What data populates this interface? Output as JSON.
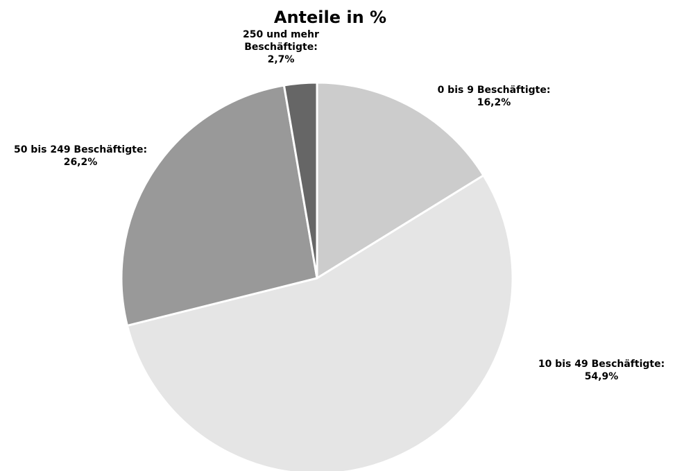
{
  "chart_data": {
    "type": "pie",
    "title": "Anteile in %",
    "series": [
      {
        "slices": [
          {
            "category": "0 bis 9 Beschäftigte",
            "value": 16.2,
            "label": "16,2%",
            "color": "#cccccc"
          },
          {
            "category": "10 bis 49 Beschäftigte",
            "value": 54.9,
            "label": "54,9%",
            "color": "#e5e5e5"
          },
          {
            "category": "50 bis 249 Beschäftigte",
            "value": 26.2,
            "label": "26,2%",
            "color": "#999999"
          },
          {
            "category": "250 und mehr Beschäftigte",
            "value": 2.7,
            "label": "2,7%",
            "color": "#666666"
          }
        ]
      }
    ],
    "labels": [
      {
        "lines": [
          "0 bis 9 Beschäftigte:",
          "16,2%"
        ]
      },
      {
        "lines": [
          "10 bis 49 Beschäftigte:",
          "54,9%"
        ]
      },
      {
        "lines": [
          "50 bis 249 Beschäftigte:",
          "26,2%"
        ]
      },
      {
        "lines": [
          "250 und mehr",
          "Beschäftigte:",
          "2,7%"
        ]
      }
    ]
  }
}
